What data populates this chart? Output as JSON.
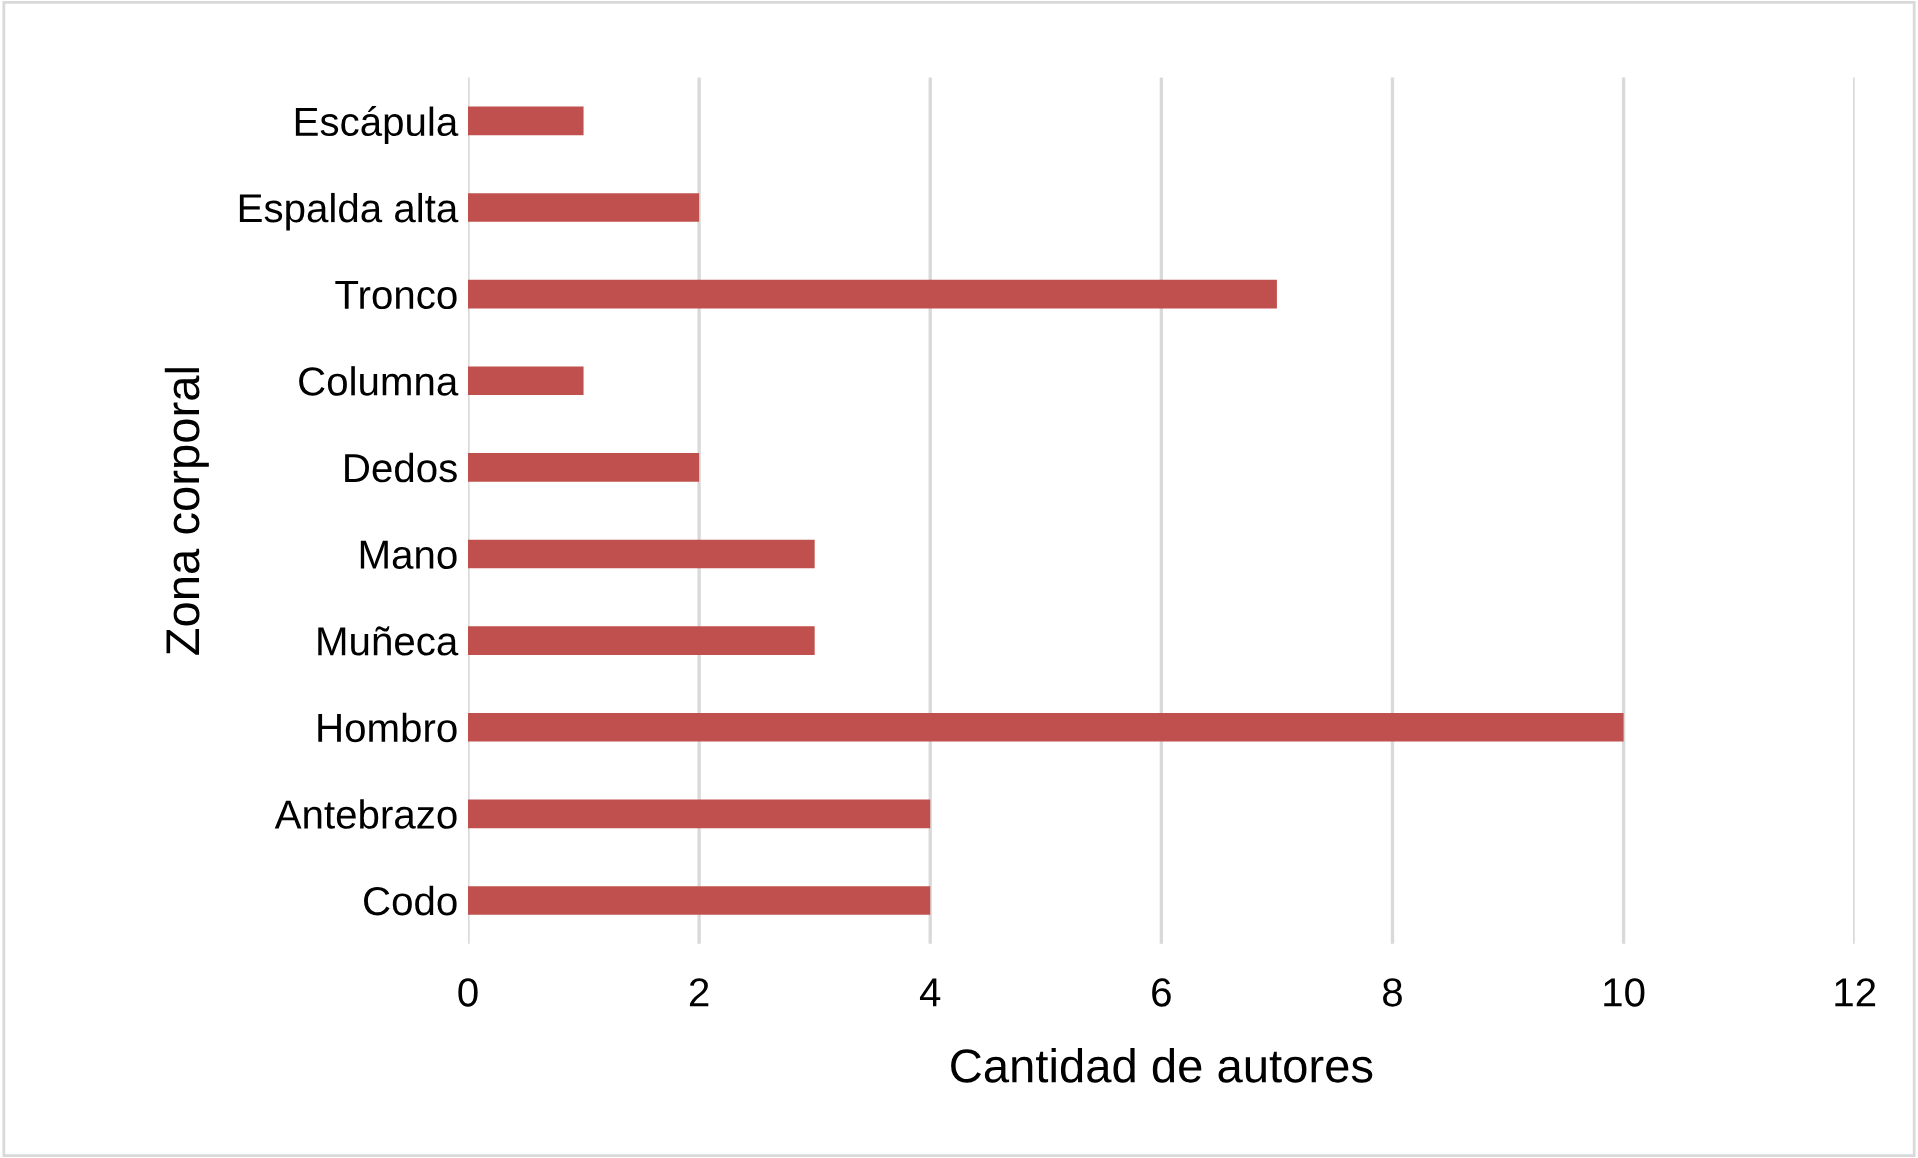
{
  "chart_data": {
    "type": "bar",
    "orientation": "horizontal",
    "xlabel": "Cantidad de autores",
    "ylabel": "Zona corporal",
    "categories": [
      "Escápula",
      "Espalda alta",
      "Tronco",
      "Columna",
      "Dedos",
      "Mano",
      "Muñeca",
      "Hombro",
      "Antebrazo",
      "Codo"
    ],
    "values": [
      1,
      2,
      7,
      1,
      2,
      3,
      3,
      10,
      4,
      4
    ],
    "color": "#c0504d",
    "xlim": [
      0,
      12
    ],
    "xticks": [
      0,
      2,
      4,
      6,
      8,
      10,
      12
    ],
    "grid": "x",
    "legend": false
  }
}
